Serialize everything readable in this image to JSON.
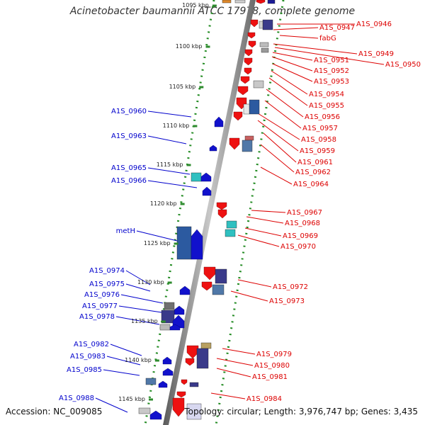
{
  "title": "Acinetobacter baumannii ATCC 17978, complete genome",
  "accession": "Accession: NC_009085",
  "topology": "Topology: circular; Length: 3,976,747 bp; Genes: 3,435",
  "colors": {
    "forward_label": "#0000cc",
    "reverse_label": "#dd0000",
    "dots": "#228b22",
    "backbone": "#888888"
  },
  "kbp_ticks": [
    "1095 kbp",
    "1100 kbp",
    "1105 kbp",
    "1110 kbp",
    "1115 kbp",
    "1120 kbp",
    "1125 kbp",
    "1130 kbp",
    "1135 kbp",
    "1140 kbp",
    "1145 kbp"
  ],
  "left_labels": [
    "A1S_0960",
    "A1S_0963",
    "A1S_0965",
    "A1S_0966",
    "metH",
    "A1S_0974",
    "A1S_0975",
    "A1S_0976",
    "A1S_0977",
    "A1S_0978",
    "A1S_0982",
    "A1S_0983",
    "A1S_0985",
    "A1S_0988"
  ],
  "right_labels": [
    "A1S_0946",
    "A1S_0947",
    "fabG",
    "A1S_0949",
    "A1S_0950",
    "A1S_0951",
    "A1S_0952",
    "A1S_0953",
    "A1S_0954",
    "A1S_0955",
    "A1S_0956",
    "A1S_0957",
    "A1S_0958",
    "A1S_0959",
    "A1S_0961",
    "A1S_0962",
    "A1S_0964",
    "A1S_0967",
    "A1S_0968",
    "A1S_0969",
    "A1S_0970",
    "A1S_0972",
    "A1S_0973",
    "A1S_0979",
    "A1S_0980",
    "A1S_0981",
    "A1S_0984"
  ]
}
